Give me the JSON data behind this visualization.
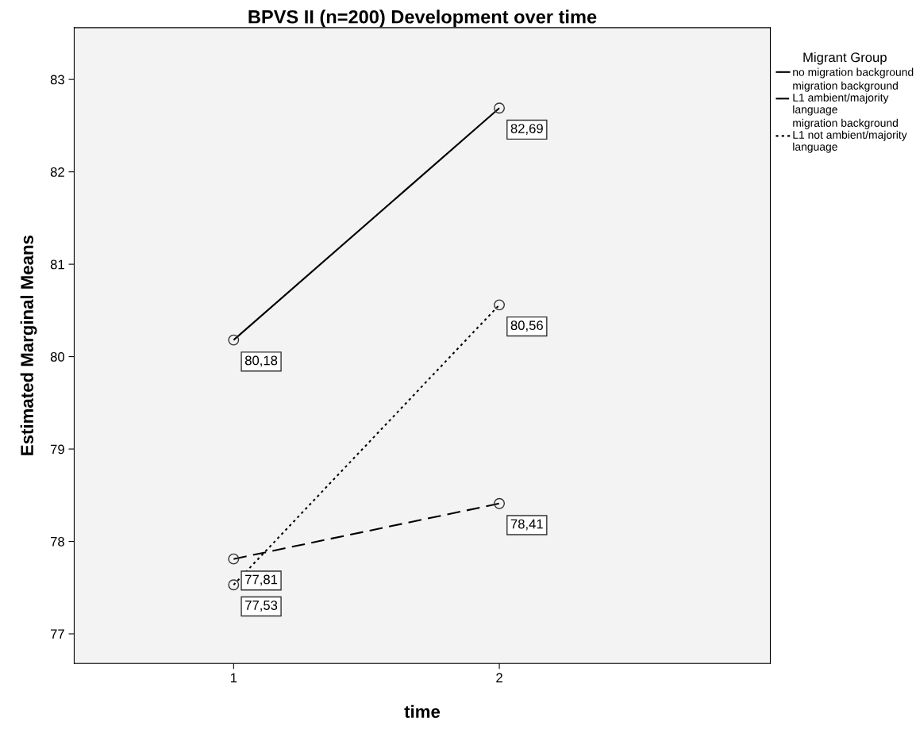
{
  "chart_data": {
    "type": "line",
    "title": "BPVS II (n=200) Development over time",
    "xlabel": "time",
    "ylabel": "Estimated Marginal Means",
    "legend_title": "Migrant Group",
    "x": [
      1,
      2
    ],
    "xlim": [
      0.4,
      3.02
    ],
    "xticks": [
      1,
      2
    ],
    "ylim": [
      76.68,
      83.56
    ],
    "yticks": [
      77,
      78,
      79,
      80,
      81,
      82,
      83
    ],
    "series": [
      {
        "name": "no migration background",
        "color": "#000000",
        "line_style": "solid",
        "values": [
          80.18,
          82.69
        ],
        "value_labels": [
          "80,18",
          "82,69"
        ]
      },
      {
        "name": "migration background\nL1 ambient/majority\nlanguage",
        "color": "#000000",
        "line_style": "dashed",
        "values": [
          77.81,
          78.41
        ],
        "value_labels": [
          "77,81",
          "78,41"
        ]
      },
      {
        "name": "migration background\nL1 not ambient/majority\nlanguage",
        "color": "#000000",
        "line_style": "dotted",
        "values": [
          77.53,
          80.56
        ],
        "value_labels": [
          "77,53",
          "80,56"
        ]
      }
    ],
    "marker": "circle",
    "grid": false,
    "legend": "top right"
  }
}
